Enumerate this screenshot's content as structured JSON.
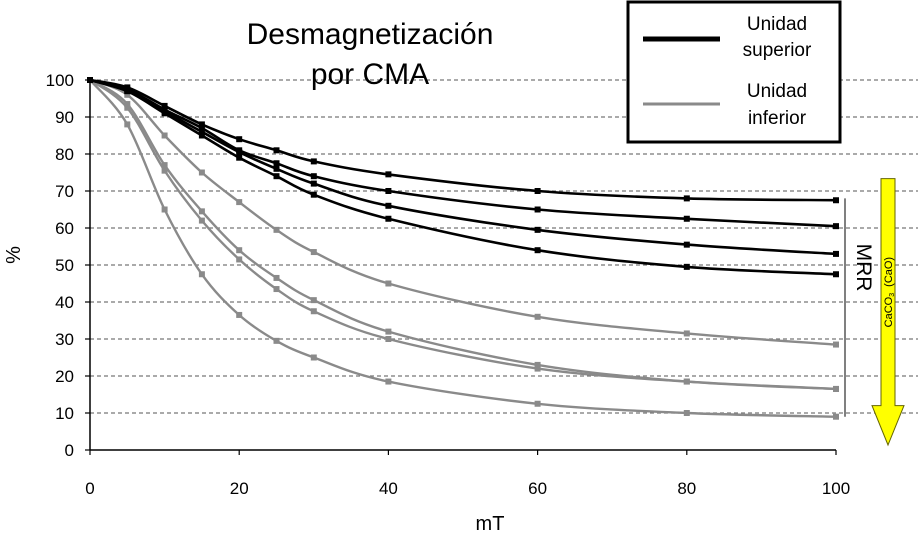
{
  "chart_data": {
    "type": "line",
    "title_lines": [
      "Desmagnetización",
      "por CMA"
    ],
    "xlabel": "mT",
    "ylabel": "%",
    "xlim": [
      0,
      100
    ],
    "ylim": [
      0,
      100
    ],
    "x_ticks": [
      0,
      20,
      40,
      60,
      80,
      100
    ],
    "y_ticks": [
      0,
      10,
      20,
      30,
      40,
      50,
      60,
      70,
      80,
      90,
      100
    ],
    "grid": "horizontal dashed",
    "legend": {
      "placement": "top-right",
      "entries": [
        {
          "lines": [
            "Unidad",
            "superior"
          ],
          "color": "#000000"
        },
        {
          "lines": [
            "Unidad",
            "inferior"
          ],
          "color": "#8a8a8a"
        }
      ]
    },
    "series": [
      {
        "name": "Unidad superior 1",
        "group": "Unidad superior",
        "color": "#000000",
        "x": [
          0,
          5,
          10,
          15,
          20,
          25,
          30,
          40,
          60,
          80,
          100
        ],
        "y": [
          100,
          98,
          93,
          88,
          84,
          81,
          78,
          74.5,
          70,
          68,
          67.5
        ]
      },
      {
        "name": "Unidad superior 2",
        "group": "Unidad superior",
        "color": "#000000",
        "x": [
          0,
          5,
          10,
          15,
          20,
          25,
          30,
          40,
          60,
          80,
          100
        ],
        "y": [
          100,
          97.5,
          92,
          87,
          81,
          77.5,
          74,
          70,
          65,
          62.5,
          60.5
        ]
      },
      {
        "name": "Unidad superior 3",
        "group": "Unidad superior",
        "color": "#000000",
        "x": [
          0,
          5,
          10,
          15,
          20,
          25,
          30,
          40,
          60,
          80,
          100
        ],
        "y": [
          100,
          97,
          91.5,
          86,
          80.5,
          76,
          72,
          66,
          59.5,
          55.5,
          53
        ]
      },
      {
        "name": "Unidad superior 4",
        "group": "Unidad superior",
        "color": "#000000",
        "x": [
          0,
          5,
          10,
          15,
          20,
          25,
          30,
          40,
          60,
          80,
          100
        ],
        "y": [
          100,
          97,
          91,
          85,
          79,
          74,
          69,
          62.5,
          54,
          49.5,
          47.5
        ]
      },
      {
        "name": "Unidad inferior 1",
        "group": "Unidad inferior",
        "color": "#8a8a8a",
        "x": [
          0,
          5,
          10,
          15,
          20,
          25,
          30,
          40,
          60,
          80,
          100
        ],
        "y": [
          100,
          96,
          85,
          75,
          67,
          59.5,
          53.5,
          45,
          36,
          31.5,
          28.5
        ]
      },
      {
        "name": "Unidad inferior 2",
        "group": "Unidad inferior",
        "color": "#8a8a8a",
        "x": [
          0,
          5,
          10,
          15,
          20,
          25,
          30,
          40,
          60,
          80,
          100
        ],
        "y": [
          100,
          93.5,
          77,
          64.5,
          54,
          46.5,
          40.5,
          32,
          23,
          18.5,
          16.5
        ]
      },
      {
        "name": "Unidad inferior 3",
        "group": "Unidad inferior",
        "color": "#8a8a8a",
        "x": [
          0,
          5,
          10,
          15,
          20,
          25,
          30,
          40,
          60,
          80,
          100
        ],
        "y": [
          100,
          92.5,
          75.5,
          62,
          51.5,
          43.5,
          37.5,
          30,
          22,
          18.5,
          16.5
        ]
      },
      {
        "name": "Unidad inferior 4",
        "group": "Unidad inferior",
        "color": "#8a8a8a",
        "x": [
          0,
          5,
          10,
          15,
          20,
          25,
          30,
          40,
          60,
          80,
          100
        ],
        "y": [
          100,
          88,
          65,
          47.5,
          36.5,
          29.5,
          25,
          18.5,
          12.5,
          10,
          9
        ]
      }
    ],
    "annotations": {
      "bracket_label": "MRR",
      "bracket_range": [
        9,
        68
      ],
      "arrow_label_main": "CaCO",
      "arrow_label_sub": "3",
      "arrow_label_paren": "(CaO)",
      "arrow_color": "#ffff00",
      "arrow_range": [
        0,
        72
      ]
    }
  }
}
